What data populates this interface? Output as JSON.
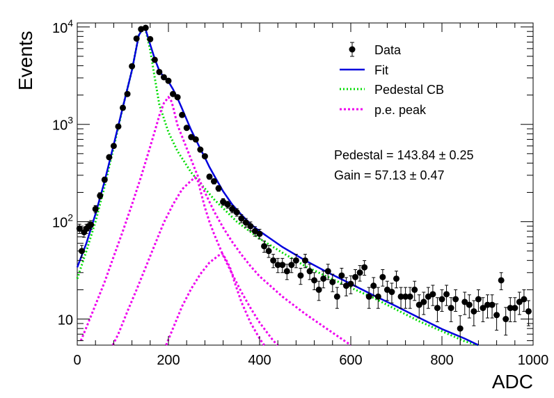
{
  "chart_data": {
    "type": "scatter",
    "title": "",
    "xlabel": "ADC",
    "ylabel": "Events",
    "xlim": [
      0,
      1000
    ],
    "ylim": [
      5.4,
      11000
    ],
    "yscale": "log",
    "x_ticks": [
      "0",
      "200",
      "400",
      "600",
      "800",
      "1000"
    ],
    "y_ticks": [
      {
        "value": 10,
        "base": "10",
        "exp": ""
      },
      {
        "value": 100,
        "base": "10",
        "exp": "2"
      },
      {
        "value": 1000,
        "base": "10",
        "exp": "3"
      },
      {
        "value": 10000,
        "base": "10",
        "exp": "4"
      }
    ],
    "legend_position": "top-right",
    "legend": [
      {
        "label": "Data",
        "style": "marker",
        "color": "#000000"
      },
      {
        "label": "Fit",
        "style": "solid",
        "color": "#0000dd"
      },
      {
        "label": "Pedestal CB",
        "style": "dotted",
        "color": "#00dd00"
      },
      {
        "label": "p.e. peak",
        "style": "dashed",
        "color": "#ee00ee"
      }
    ],
    "annotations": [
      {
        "text": "Pedestal = 143.84 ± 0.25"
      },
      {
        "text": "Gain = 57.13 ± 0.47"
      }
    ],
    "data_points": [
      [
        5,
        85
      ],
      [
        10,
        50
      ],
      [
        15,
        78
      ],
      [
        20,
        85
      ],
      [
        25,
        90
      ],
      [
        30,
        93
      ],
      [
        40,
        135
      ],
      [
        50,
        185
      ],
      [
        60,
        270
      ],
      [
        70,
        460
      ],
      [
        80,
        600
      ],
      [
        90,
        950
      ],
      [
        100,
        1480
      ],
      [
        110,
        2050
      ],
      [
        120,
        3950
      ],
      [
        130,
        7600
      ],
      [
        140,
        9500
      ],
      [
        150,
        9800
      ],
      [
        160,
        7500
      ],
      [
        170,
        4600
      ],
      [
        180,
        3450
      ],
      [
        190,
        3050
      ],
      [
        200,
        2800
      ],
      [
        210,
        2050
      ],
      [
        220,
        1900
      ],
      [
        230,
        1250
      ],
      [
        240,
        920
      ],
      [
        250,
        740
      ],
      [
        260,
        700
      ],
      [
        270,
        550
      ],
      [
        280,
        470
      ],
      [
        290,
        290
      ],
      [
        300,
        260
      ],
      [
        310,
        220
      ],
      [
        320,
        160
      ],
      [
        330,
        150
      ],
      [
        340,
        135
      ],
      [
        350,
        125
      ],
      [
        360,
        108
      ],
      [
        370,
        98
      ],
      [
        380,
        90
      ],
      [
        390,
        80
      ],
      [
        400,
        75
      ],
      [
        410,
        56
      ],
      [
        420,
        50
      ],
      [
        430,
        40
      ],
      [
        440,
        36
      ],
      [
        450,
        36
      ],
      [
        460,
        31
      ],
      [
        470,
        36
      ],
      [
        480,
        40
      ],
      [
        490,
        28
      ],
      [
        500,
        40
      ],
      [
        510,
        31
      ],
      [
        520,
        25
      ],
      [
        530,
        20
      ],
      [
        540,
        26
      ],
      [
        550,
        31
      ],
      [
        560,
        24
      ],
      [
        570,
        17
      ],
      [
        580,
        28
      ],
      [
        590,
        22
      ],
      [
        600,
        23
      ],
      [
        610,
        27
      ],
      [
        620,
        30
      ],
      [
        630,
        34
      ],
      [
        640,
        17
      ],
      [
        650,
        22
      ],
      [
        660,
        17
      ],
      [
        670,
        27
      ],
      [
        680,
        20
      ],
      [
        690,
        19
      ],
      [
        700,
        26
      ],
      [
        710,
        17
      ],
      [
        720,
        17
      ],
      [
        730,
        17
      ],
      [
        740,
        20
      ],
      [
        750,
        14
      ],
      [
        760,
        15
      ],
      [
        770,
        17
      ],
      [
        780,
        18
      ],
      [
        790,
        13
      ],
      [
        800,
        16
      ],
      [
        810,
        18
      ],
      [
        820,
        13
      ],
      [
        830,
        16
      ],
      [
        840,
        8
      ],
      [
        850,
        15
      ],
      [
        860,
        14
      ],
      [
        870,
        12
      ],
      [
        880,
        16
      ],
      [
        890,
        13
      ],
      [
        900,
        14
      ],
      [
        910,
        14
      ],
      [
        920,
        11
      ],
      [
        930,
        25
      ],
      [
        940,
        10
      ],
      [
        950,
        13
      ],
      [
        960,
        13
      ],
      [
        970,
        15
      ],
      [
        980,
        16
      ],
      [
        990,
        12
      ]
    ],
    "series": [
      {
        "name": "Fit",
        "color": "#0000dd",
        "dash": "solid",
        "points": [
          [
            0,
            34
          ],
          [
            20,
            60
          ],
          [
            40,
            120
          ],
          [
            60,
            260
          ],
          [
            80,
            620
          ],
          [
            100,
            1500
          ],
          [
            120,
            3600
          ],
          [
            135,
            8200
          ],
          [
            144,
            9700
          ],
          [
            150,
            9400
          ],
          [
            160,
            6600
          ],
          [
            170,
            4700
          ],
          [
            180,
            3550
          ],
          [
            190,
            3050
          ],
          [
            200,
            2750
          ],
          [
            210,
            2300
          ],
          [
            220,
            1850
          ],
          [
            230,
            1450
          ],
          [
            240,
            1120
          ],
          [
            250,
            870
          ],
          [
            260,
            700
          ],
          [
            270,
            560
          ],
          [
            280,
            455
          ],
          [
            290,
            365
          ],
          [
            300,
            300
          ],
          [
            320,
            205
          ],
          [
            340,
            150
          ],
          [
            360,
            118
          ],
          [
            380,
            95
          ],
          [
            400,
            80
          ],
          [
            450,
            55
          ],
          [
            500,
            40
          ],
          [
            550,
            30
          ],
          [
            600,
            23
          ],
          [
            650,
            17.5
          ],
          [
            700,
            13.5
          ],
          [
            750,
            10.3
          ],
          [
            800,
            7.9
          ],
          [
            850,
            6.3
          ],
          [
            880,
            5.4
          ]
        ]
      },
      {
        "name": "Pedestal CB",
        "color": "#00dd00",
        "dash": "dotted",
        "points": [
          [
            0,
            26
          ],
          [
            20,
            50
          ],
          [
            40,
            100
          ],
          [
            60,
            230
          ],
          [
            80,
            580
          ],
          [
            100,
            1500
          ],
          [
            120,
            3600
          ],
          [
            135,
            8200
          ],
          [
            144,
            9700
          ],
          [
            150,
            9300
          ],
          [
            160,
            5800
          ],
          [
            170,
            3000
          ],
          [
            180,
            1600
          ],
          [
            200,
            830
          ],
          [
            220,
            530
          ],
          [
            250,
            320
          ],
          [
            300,
            170
          ],
          [
            350,
            100
          ],
          [
            400,
            67
          ],
          [
            450,
            48
          ],
          [
            500,
            35
          ],
          [
            550,
            27
          ],
          [
            600,
            21
          ],
          [
            650,
            16.5
          ],
          [
            700,
            12.5
          ],
          [
            750,
            9.5
          ],
          [
            800,
            7.5
          ],
          [
            850,
            5.9
          ],
          [
            880,
            5.4
          ]
        ]
      },
      {
        "name": "p.e. peak 1",
        "color": "#ee00ee",
        "dash": "dashed",
        "points": [
          [
            8,
            6
          ],
          [
            20,
            8.2
          ],
          [
            40,
            14
          ],
          [
            60,
            24
          ],
          [
            80,
            44
          ],
          [
            100,
            80
          ],
          [
            120,
            150
          ],
          [
            140,
            290
          ],
          [
            160,
            590
          ],
          [
            170,
            850
          ],
          [
            180,
            1230
          ],
          [
            190,
            1650
          ],
          [
            200,
            1900
          ],
          [
            205,
            1800
          ],
          [
            210,
            1530
          ],
          [
            215,
            1220
          ],
          [
            220,
            980
          ],
          [
            240,
            570
          ],
          [
            260,
            330
          ],
          [
            280,
            200
          ],
          [
            300,
            128
          ],
          [
            320,
            87
          ],
          [
            340,
            62
          ],
          [
            360,
            46
          ],
          [
            380,
            35
          ],
          [
            400,
            27.5
          ],
          [
            450,
            17
          ],
          [
            500,
            11.3
          ],
          [
            550,
            7.8
          ],
          [
            600,
            5.4
          ]
        ]
      },
      {
        "name": "p.e. peak 2",
        "color": "#ee00ee",
        "dash": "dashed",
        "points": [
          [
            78,
            5.4
          ],
          [
            90,
            7
          ],
          [
            110,
            12
          ],
          [
            130,
            20
          ],
          [
            150,
            34
          ],
          [
            170,
            58
          ],
          [
            190,
            98
          ],
          [
            210,
            150
          ],
          [
            230,
            215
          ],
          [
            250,
            265
          ],
          [
            258,
            285
          ],
          [
            265,
            260
          ],
          [
            270,
            210
          ],
          [
            280,
            140
          ],
          [
            290,
            100
          ],
          [
            300,
            75
          ],
          [
            320,
            45
          ],
          [
            340,
            29
          ],
          [
            360,
            19
          ],
          [
            380,
            13
          ],
          [
            400,
            9.2
          ],
          [
            430,
            6
          ],
          [
            440,
            5.4
          ]
        ]
      },
      {
        "name": "p.e. peak 3",
        "color": "#ee00ee",
        "dash": "dashed",
        "points": [
          [
            195,
            5.4
          ],
          [
            210,
            8
          ],
          [
            230,
            13.5
          ],
          [
            250,
            20.5
          ],
          [
            270,
            29
          ],
          [
            290,
            38
          ],
          [
            310,
            45
          ],
          [
            318,
            47
          ],
          [
            325,
            42
          ],
          [
            335,
            34
          ],
          [
            345,
            24
          ],
          [
            360,
            15
          ],
          [
            380,
            9.2
          ],
          [
            400,
            6.3
          ],
          [
            410,
            5.4
          ]
        ]
      }
    ]
  }
}
